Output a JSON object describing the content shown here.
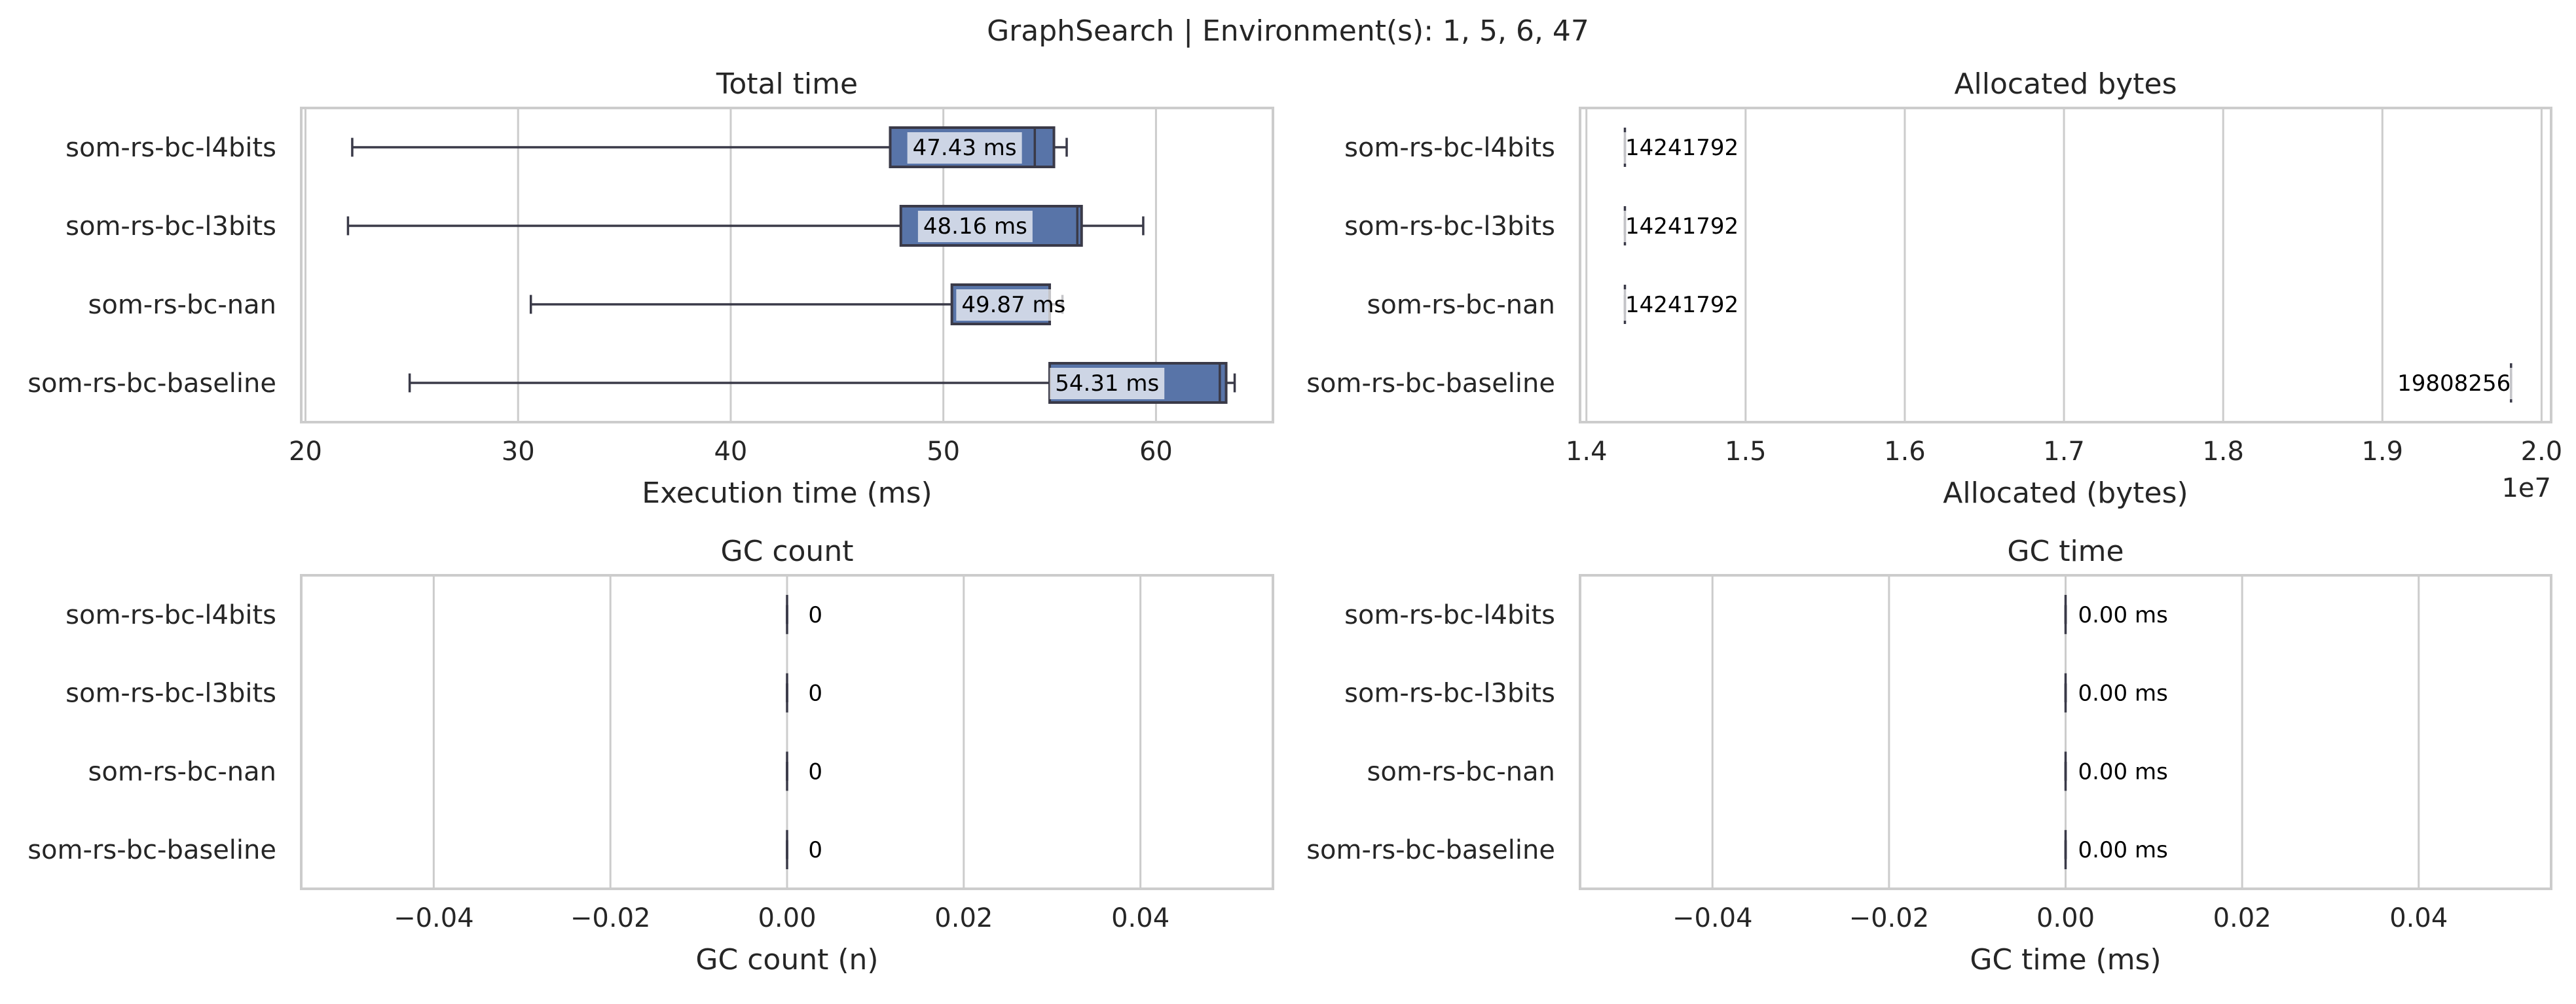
{
  "suptitle": "GraphSearch | Environment(s): 1, 5, 6, 47",
  "style": {
    "box_fill": "#5874a8",
    "box_edge": "#3a3a48",
    "grid": "#cccccc",
    "frame": "#cccccc",
    "label_bg": "#ffffff"
  },
  "chart_data": [
    {
      "type": "box",
      "title": "Total time",
      "xlabel": "Execution time (ms)",
      "xlim": [
        19.8,
        65.5
      ],
      "xticks": [
        20,
        30,
        40,
        50,
        60
      ],
      "tick_labels": [
        "20",
        "30",
        "40",
        "50",
        "60"
      ],
      "offset_label": "",
      "categories": [
        "som-rs-bc-l4bits",
        "som-rs-bc-l3bits",
        "som-rs-bc-nan",
        "som-rs-bc-baseline"
      ],
      "boxes": [
        {
          "whislo": 22.2,
          "q1": 47.5,
          "med": 54.3,
          "q3": 55.2,
          "whishi": 55.8
        },
        {
          "whislo": 22.0,
          "q1": 48.0,
          "med": 56.3,
          "q3": 56.5,
          "whishi": 59.4
        },
        {
          "whislo": 30.6,
          "q1": 50.4,
          "med": 55.0,
          "q3": 55.0,
          "whishi": 55.6
        },
        {
          "whislo": 24.9,
          "q1": 55.0,
          "med": 63.0,
          "q3": 63.3,
          "whishi": 63.7
        }
      ],
      "labels": [
        "47.43 ms",
        "48.16 ms",
        "49.87 ms",
        "54.31 ms"
      ],
      "label_x": [
        51.0,
        51.5,
        53.3,
        57.7
      ]
    },
    {
      "type": "box",
      "title": "Allocated bytes",
      "xlabel": "Allocated (bytes)",
      "xlim": [
        13960000,
        20060000
      ],
      "xticks": [
        14000000,
        15000000,
        16000000,
        17000000,
        18000000,
        19000000,
        20000000
      ],
      "tick_labels": [
        "1.4",
        "1.5",
        "1.6",
        "1.7",
        "1.8",
        "1.9",
        "2.0"
      ],
      "offset_label": "1e7",
      "categories": [
        "som-rs-bc-l4bits",
        "som-rs-bc-l3bits",
        "som-rs-bc-nan",
        "som-rs-bc-baseline"
      ],
      "boxes": [
        {
          "whislo": 14241792,
          "q1": 14241792,
          "med": 14241792,
          "q3": 14241792,
          "whishi": 14241792
        },
        {
          "whislo": 14241792,
          "q1": 14241792,
          "med": 14241792,
          "q3": 14241792,
          "whishi": 14241792
        },
        {
          "whislo": 14241792,
          "q1": 14241792,
          "med": 14241792,
          "q3": 14241792,
          "whishi": 14241792
        },
        {
          "whislo": 19808256,
          "q1": 19808256,
          "med": 19808256,
          "q3": 19808256,
          "whishi": 19808256
        }
      ],
      "labels": [
        "14241792",
        "14241792",
        "14241792",
        "19808256"
      ],
      "label_x": [
        14600000,
        14600000,
        14600000,
        19450000
      ]
    },
    {
      "type": "box",
      "title": "GC count",
      "xlabel": "GC count (n)",
      "xlim": [
        -0.055,
        0.055
      ],
      "xticks": [
        -0.04,
        -0.02,
        0,
        0.02,
        0.04
      ],
      "tick_labels": [
        "−0.04",
        "−0.02",
        "0.00",
        "0.02",
        "0.04"
      ],
      "offset_label": "",
      "categories": [
        "som-rs-bc-l4bits",
        "som-rs-bc-l3bits",
        "som-rs-bc-nan",
        "som-rs-bc-baseline"
      ],
      "boxes": [
        {
          "whislo": 0,
          "q1": 0,
          "med": 0,
          "q3": 0,
          "whishi": 0
        },
        {
          "whislo": 0,
          "q1": 0,
          "med": 0,
          "q3": 0,
          "whishi": 0
        },
        {
          "whislo": 0,
          "q1": 0,
          "med": 0,
          "q3": 0,
          "whishi": 0
        },
        {
          "whislo": 0,
          "q1": 0,
          "med": 0,
          "q3": 0,
          "whishi": 0
        }
      ],
      "labels": [
        "0",
        "0",
        "0",
        "0"
      ],
      "label_x": [
        0.0032,
        0.0032,
        0.0032,
        0.0032
      ]
    },
    {
      "type": "box",
      "title": "GC time",
      "xlabel": "GC time (ms)",
      "xlim": [
        -0.055,
        0.055
      ],
      "xticks": [
        -0.04,
        -0.02,
        0,
        0.02,
        0.04
      ],
      "tick_labels": [
        "−0.04",
        "−0.02",
        "0.00",
        "0.02",
        "0.04"
      ],
      "offset_label": "",
      "categories": [
        "som-rs-bc-l4bits",
        "som-rs-bc-l3bits",
        "som-rs-bc-nan",
        "som-rs-bc-baseline"
      ],
      "boxes": [
        {
          "whislo": 0,
          "q1": 0,
          "med": 0,
          "q3": 0,
          "whishi": 0
        },
        {
          "whislo": 0,
          "q1": 0,
          "med": 0,
          "q3": 0,
          "whishi": 0
        },
        {
          "whislo": 0,
          "q1": 0,
          "med": 0,
          "q3": 0,
          "whishi": 0
        },
        {
          "whislo": 0,
          "q1": 0,
          "med": 0,
          "q3": 0,
          "whishi": 0
        }
      ],
      "labels": [
        "0.00 ms",
        "0.00 ms",
        "0.00 ms",
        "0.00 ms"
      ],
      "label_x": [
        0.0065,
        0.0065,
        0.0065,
        0.0065
      ]
    }
  ]
}
